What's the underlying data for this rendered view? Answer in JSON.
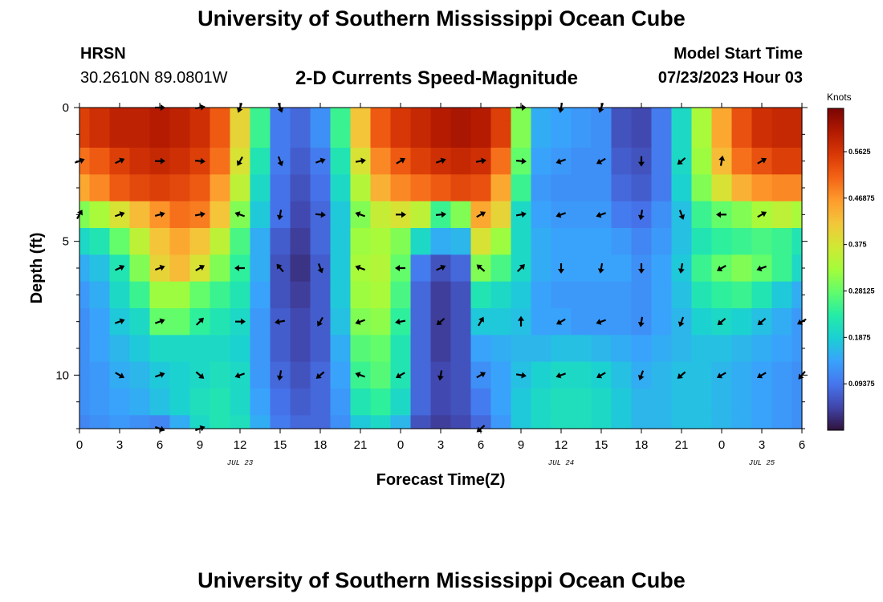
{
  "header": {
    "title": "University of Southern Mississippi Ocean Cube",
    "station": "HRSN",
    "coords": "30.2610N  89.0801W",
    "subtitle": "2-D Currents Speed-Magnitude",
    "model_label": "Model Start Time",
    "model_time": "07/23/2023 Hour 03"
  },
  "footer": {
    "title": "University of Southern Mississippi Ocean Cube"
  },
  "chart_data": {
    "type": "heatmap",
    "title": "2-D Currents Speed-Magnitude",
    "xlabel": "Forecast Time(Z)",
    "ylabel": "Depth (ft)",
    "ylim": [
      0,
      12
    ],
    "x_range_hours": [
      0,
      54
    ],
    "x_tick_hours": [
      0,
      3,
      6,
      9,
      12,
      15,
      18,
      21,
      24,
      27,
      30,
      33,
      36,
      39,
      42,
      45,
      48,
      51,
      54
    ],
    "x_tick_labels": [
      "0",
      "3",
      "6",
      "9",
      "12",
      "15",
      "18",
      "21",
      "0",
      "3",
      "6",
      "9",
      "12",
      "15",
      "18",
      "21",
      "0",
      "3",
      "6"
    ],
    "y_ticks": [
      0,
      5,
      10
    ],
    "y_tick_labels": [
      "0",
      "5",
      "10"
    ],
    "date_labels": [
      {
        "hour": 12,
        "text": "JUL 23"
      },
      {
        "hour": 36,
        "text": "JUL 24"
      },
      {
        "hour": 51,
        "text": "JUL 25"
      }
    ],
    "colorbar": {
      "label": "Knots",
      "min": 0,
      "max": 0.65,
      "ticks": [
        0.09375,
        0.1875,
        0.28125,
        0.375,
        0.46875,
        0.5625
      ],
      "tick_labels": [
        "0.09375",
        "0.1875",
        "0.28125",
        "0.375",
        "0.46875",
        "0.5625"
      ],
      "colormap": [
        "#30123b",
        "#4145ab",
        "#4675ed",
        "#39a2fc",
        "#1bcfd4",
        "#24eca6",
        "#61fc6c",
        "#a4fc3b",
        "#d1e834",
        "#f3c63a",
        "#fe9b2d",
        "#f36315",
        "#d93806",
        "#b11901",
        "#7a0403"
      ]
    },
    "depth_bins_ft": [
      0,
      1,
      2,
      3,
      4,
      5,
      6,
      7,
      8,
      9,
      10,
      11,
      12
    ],
    "hours": [
      0,
      1.5,
      3,
      4.5,
      6,
      7.5,
      9,
      10.5,
      12,
      13.5,
      15,
      16.5,
      18,
      19.5,
      21,
      22.5,
      24,
      25.5,
      27,
      28.5,
      30,
      31.5,
      33,
      34.5,
      36,
      37.5,
      39,
      40.5,
      42,
      43.5,
      45,
      46.5,
      48,
      49.5,
      51,
      52.5,
      54
    ],
    "speed_knots": [
      [
        0.55,
        0.57,
        0.59,
        0.59,
        0.6,
        0.59,
        0.57,
        0.52,
        0.4,
        0.25,
        0.1,
        0.08,
        0.12,
        0.25,
        0.42,
        0.52,
        0.56,
        0.58,
        0.6,
        0.61,
        0.6,
        0.55,
        0.3,
        0.15,
        0.14,
        0.13,
        0.12,
        0.06,
        0.05,
        0.1,
        0.2,
        0.33,
        0.45,
        0.53,
        0.57,
        0.58,
        0.58
      ],
      [
        0.55,
        0.57,
        0.59,
        0.59,
        0.6,
        0.59,
        0.57,
        0.52,
        0.4,
        0.25,
        0.1,
        0.08,
        0.12,
        0.25,
        0.42,
        0.52,
        0.56,
        0.58,
        0.6,
        0.61,
        0.6,
        0.55,
        0.3,
        0.15,
        0.14,
        0.13,
        0.12,
        0.06,
        0.05,
        0.1,
        0.2,
        0.33,
        0.45,
        0.53,
        0.57,
        0.58,
        0.58
      ],
      [
        0.5,
        0.52,
        0.55,
        0.57,
        0.58,
        0.57,
        0.55,
        0.5,
        0.38,
        0.22,
        0.1,
        0.07,
        0.1,
        0.22,
        0.38,
        0.48,
        0.52,
        0.55,
        0.57,
        0.58,
        0.57,
        0.5,
        0.28,
        0.14,
        0.13,
        0.12,
        0.12,
        0.07,
        0.06,
        0.1,
        0.2,
        0.32,
        0.43,
        0.5,
        0.53,
        0.55,
        0.55
      ],
      [
        0.45,
        0.48,
        0.52,
        0.54,
        0.55,
        0.54,
        0.52,
        0.46,
        0.35,
        0.2,
        0.09,
        0.06,
        0.09,
        0.2,
        0.34,
        0.44,
        0.48,
        0.5,
        0.52,
        0.54,
        0.53,
        0.45,
        0.25,
        0.13,
        0.12,
        0.12,
        0.12,
        0.08,
        0.07,
        0.1,
        0.19,
        0.3,
        0.38,
        0.44,
        0.47,
        0.48,
        0.48
      ],
      [
        0.3,
        0.33,
        0.38,
        0.43,
        0.47,
        0.5,
        0.49,
        0.42,
        0.3,
        0.18,
        0.09,
        0.05,
        0.08,
        0.18,
        0.3,
        0.36,
        0.38,
        0.35,
        0.25,
        0.3,
        0.45,
        0.4,
        0.2,
        0.14,
        0.13,
        0.13,
        0.13,
        0.1,
        0.09,
        0.12,
        0.17,
        0.25,
        0.28,
        0.3,
        0.33,
        0.35,
        0.33
      ],
      [
        0.2,
        0.22,
        0.28,
        0.35,
        0.42,
        0.45,
        0.42,
        0.35,
        0.26,
        0.15,
        0.07,
        0.04,
        0.08,
        0.18,
        0.32,
        0.33,
        0.3,
        0.2,
        0.15,
        0.16,
        0.38,
        0.32,
        0.2,
        0.15,
        0.14,
        0.14,
        0.14,
        0.13,
        0.11,
        0.13,
        0.17,
        0.22,
        0.24,
        0.25,
        0.26,
        0.25,
        0.22
      ],
      [
        0.15,
        0.17,
        0.22,
        0.3,
        0.4,
        0.43,
        0.38,
        0.3,
        0.24,
        0.15,
        0.06,
        0.03,
        0.07,
        0.18,
        0.33,
        0.34,
        0.28,
        0.1,
        0.06,
        0.08,
        0.3,
        0.26,
        0.2,
        0.15,
        0.14,
        0.14,
        0.14,
        0.14,
        0.12,
        0.14,
        0.18,
        0.25,
        0.28,
        0.3,
        0.28,
        0.25,
        0.2
      ],
      [
        0.13,
        0.15,
        0.2,
        0.25,
        0.32,
        0.32,
        0.28,
        0.25,
        0.22,
        0.14,
        0.06,
        0.04,
        0.07,
        0.18,
        0.32,
        0.33,
        0.26,
        0.08,
        0.04,
        0.06,
        0.22,
        0.2,
        0.18,
        0.14,
        0.13,
        0.13,
        0.13,
        0.13,
        0.12,
        0.14,
        0.17,
        0.22,
        0.24,
        0.25,
        0.22,
        0.18,
        0.15
      ],
      [
        0.12,
        0.14,
        0.18,
        0.2,
        0.28,
        0.28,
        0.24,
        0.22,
        0.2,
        0.13,
        0.07,
        0.05,
        0.07,
        0.17,
        0.3,
        0.31,
        0.24,
        0.08,
        0.04,
        0.06,
        0.18,
        0.18,
        0.17,
        0.14,
        0.14,
        0.13,
        0.13,
        0.13,
        0.12,
        0.14,
        0.16,
        0.19,
        0.2,
        0.19,
        0.17,
        0.15,
        0.13
      ],
      [
        0.12,
        0.14,
        0.16,
        0.18,
        0.2,
        0.2,
        0.2,
        0.2,
        0.19,
        0.13,
        0.07,
        0.05,
        0.07,
        0.15,
        0.27,
        0.28,
        0.22,
        0.08,
        0.04,
        0.06,
        0.14,
        0.15,
        0.16,
        0.16,
        0.17,
        0.17,
        0.16,
        0.15,
        0.14,
        0.15,
        0.16,
        0.17,
        0.17,
        0.16,
        0.15,
        0.14,
        0.13
      ],
      [
        0.12,
        0.13,
        0.15,
        0.16,
        0.18,
        0.19,
        0.2,
        0.21,
        0.2,
        0.13,
        0.08,
        0.06,
        0.08,
        0.14,
        0.25,
        0.27,
        0.22,
        0.08,
        0.05,
        0.06,
        0.12,
        0.14,
        0.17,
        0.19,
        0.2,
        0.2,
        0.19,
        0.17,
        0.15,
        0.16,
        0.17,
        0.17,
        0.16,
        0.15,
        0.14,
        0.13,
        0.12
      ],
      [
        0.12,
        0.13,
        0.14,
        0.15,
        0.17,
        0.19,
        0.21,
        0.22,
        0.2,
        0.14,
        0.09,
        0.07,
        0.08,
        0.13,
        0.22,
        0.24,
        0.2,
        0.08,
        0.05,
        0.06,
        0.1,
        0.14,
        0.18,
        0.2,
        0.21,
        0.21,
        0.2,
        0.18,
        0.16,
        0.16,
        0.17,
        0.17,
        0.16,
        0.15,
        0.14,
        0.13,
        0.12
      ],
      [
        0.11,
        0.12,
        0.13,
        0.12,
        0.11,
        0.15,
        0.2,
        0.22,
        0.21,
        0.15,
        0.1,
        0.08,
        0.08,
        0.12,
        0.18,
        0.2,
        0.16,
        0.06,
        0.04,
        0.05,
        0.08,
        0.13,
        0.18,
        0.2,
        0.21,
        0.21,
        0.2,
        0.18,
        0.16,
        0.16,
        0.17,
        0.17,
        0.16,
        0.15,
        0.14,
        0.13,
        0.12
      ]
    ],
    "vector_depths_ft": [
      0,
      2,
      4,
      6,
      8,
      10,
      12
    ],
    "vector_hours": [
      0,
      3,
      6,
      9,
      12,
      15,
      18,
      21,
      24,
      27,
      30,
      33,
      36,
      39,
      42,
      45,
      48,
      51,
      54
    ],
    "vector_direction_deg": [
      [
        null,
        null,
        90,
        80,
        200,
        160,
        null,
        null,
        null,
        null,
        null,
        90,
        190,
        200,
        null,
        null,
        null,
        null,
        null
      ],
      [
        70,
        65,
        90,
        95,
        210,
        160,
        70,
        80,
        60,
        70,
        80,
        95,
        250,
        240,
        180,
        230,
        10,
        60,
        null
      ],
      [
        30,
        70,
        75,
        80,
        290,
        190,
        95,
        290,
        90,
        85,
        60,
        80,
        250,
        250,
        190,
        160,
        270,
        60,
        null
      ],
      [
        null,
        65,
        70,
        60,
        270,
        320,
        160,
        290,
        270,
        65,
        310,
        45,
        180,
        190,
        180,
        190,
        240,
        250,
        null
      ],
      [
        null,
        70,
        70,
        45,
        90,
        260,
        210,
        250,
        260,
        230,
        30,
        0,
        240,
        250,
        190,
        200,
        230,
        230,
        240
      ],
      [
        null,
        120,
        70,
        130,
        250,
        190,
        230,
        290,
        240,
        190,
        60,
        100,
        250,
        240,
        200,
        230,
        240,
        240,
        220
      ],
      [
        null,
        null,
        110,
        70,
        null,
        null,
        null,
        null,
        null,
        null,
        230,
        null,
        null,
        null,
        null,
        null,
        null,
        null,
        null
      ]
    ]
  }
}
